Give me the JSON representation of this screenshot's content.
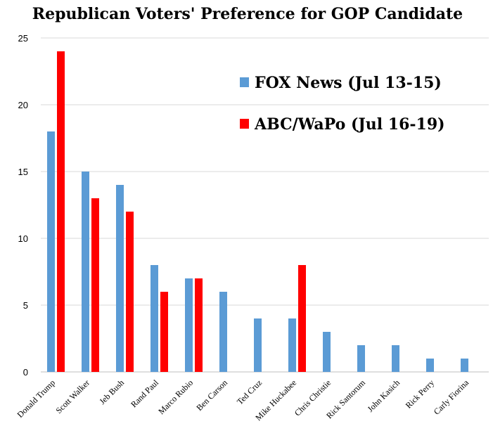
{
  "chart_data": {
    "type": "bar",
    "title": "Republican Voters' Preference for GOP Candidate",
    "xlabel": "",
    "ylabel": "",
    "ylim": [
      0,
      25
    ],
    "yticks": [
      0,
      5,
      10,
      15,
      20,
      25
    ],
    "grid": true,
    "legend_position": "top-right",
    "categories": [
      "Donald Trump",
      "Scott Walker",
      "Jeb Bush",
      "Rand Paul",
      "Marco Rubio",
      "Ben Carson",
      "Ted Cruz",
      "Mike Huckabee",
      "Chris Christie",
      "Rick Santorum",
      "John Kasich",
      "Rick Perry",
      "Carly Fiorina"
    ],
    "series": [
      {
        "name": "FOX News (Jul 13-15)",
        "color": "#5b9bd5",
        "values": [
          18,
          15,
          14,
          8,
          7,
          6,
          4,
          4,
          3,
          2,
          2,
          1,
          1
        ]
      },
      {
        "name": "ABC/WaPo (Jul 16-19)",
        "color": "#ff0000",
        "values": [
          24,
          13,
          12,
          6,
          7,
          null,
          null,
          8,
          null,
          null,
          null,
          null,
          null
        ]
      }
    ]
  }
}
